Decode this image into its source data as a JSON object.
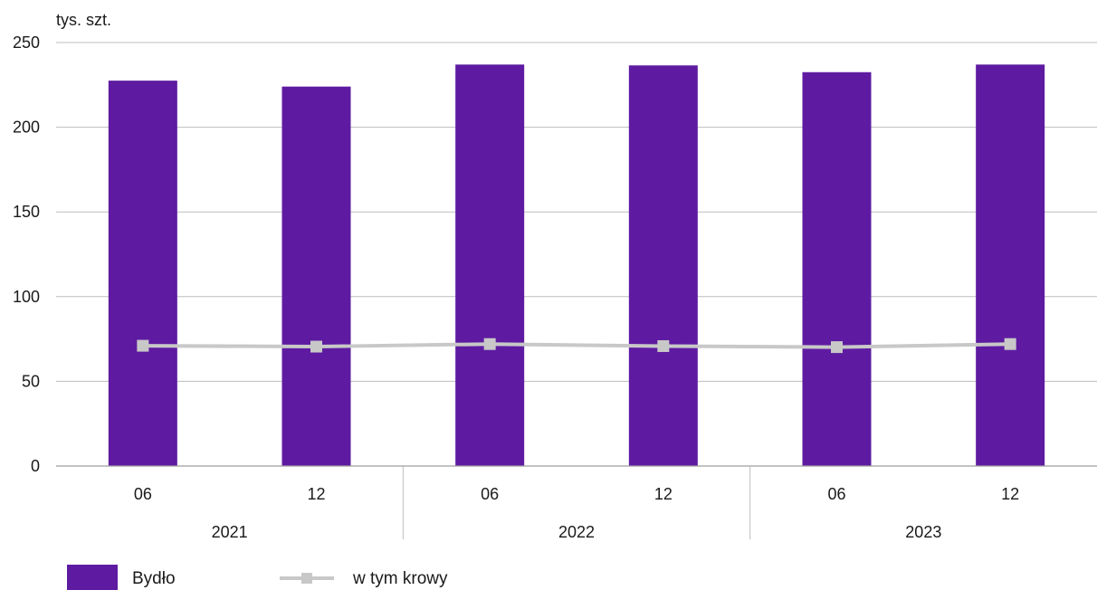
{
  "chart_data": {
    "type": "bar",
    "unit_label": "tys. szt.",
    "categories": [
      "06",
      "12",
      "06",
      "12",
      "06",
      "12"
    ],
    "groups": [
      {
        "label": "2021",
        "span": 2
      },
      {
        "label": "2022",
        "span": 2
      },
      {
        "label": "2023",
        "span": 2
      }
    ],
    "ylim": [
      0,
      250
    ],
    "yticks": [
      0,
      50,
      100,
      150,
      200,
      250
    ],
    "grid": true,
    "legend_position": "bottom-left",
    "series": [
      {
        "name": "Bydło",
        "type": "bar",
        "color": "#5e1ba1",
        "values": [
          227.5,
          224,
          237,
          236.5,
          232.5,
          237
        ]
      },
      {
        "name": "w tym krowy",
        "type": "line",
        "color": "#c8c8c8",
        "marker": "square",
        "values": [
          71,
          70.5,
          72,
          70.8,
          70.2,
          72
        ]
      }
    ]
  }
}
